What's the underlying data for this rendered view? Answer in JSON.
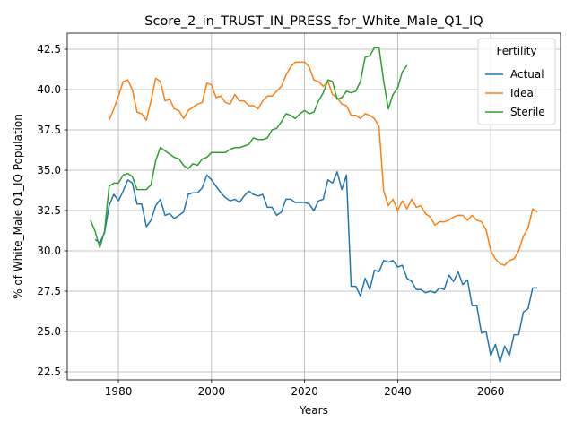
{
  "chart_data": {
    "type": "line",
    "title": "Score_2_in_TRUST_IN_PRESS_for_White_Male_Q1_IQ",
    "xlabel": "Years",
    "ylabel": "% of White_Male Q1_IQ Population",
    "xlim": [
      1969,
      2075
    ],
    "ylim": [
      22,
      43.5
    ],
    "xticks": [
      1980,
      2000,
      2020,
      2040,
      2060
    ],
    "yticks": [
      22.5,
      25.0,
      27.5,
      30.0,
      32.5,
      35.0,
      37.5,
      40.0,
      42.5
    ],
    "xtick_labels": [
      "1980",
      "2000",
      "2020",
      "2040",
      "2060"
    ],
    "ytick_labels": [
      "22.5",
      "25.0",
      "27.5",
      "30.0",
      "32.5",
      "35.0",
      "37.5",
      "40.0",
      "42.5"
    ],
    "grid": true,
    "legend": {
      "title": "Fertility",
      "position": "top-right"
    },
    "series": [
      {
        "name": "Actual",
        "color": "#1f77b4",
        "x": [
          1975,
          1976,
          1977,
          1978,
          1979,
          1980,
          1981,
          1982,
          1983,
          1984,
          1985,
          1986,
          1987,
          1988,
          1989,
          1990,
          1991,
          1992,
          1993,
          1994,
          1995,
          1996,
          1997,
          1998,
          1999,
          2000,
          2001,
          2002,
          2003,
          2004,
          2005,
          2006,
          2007,
          2008,
          2009,
          2010,
          2011,
          2012,
          2013,
          2014,
          2015,
          2016,
          2017,
          2018,
          2019,
          2020,
          2021,
          2022,
          2023,
          2024,
          2025,
          2026,
          2027,
          2028,
          2029,
          2030,
          2031,
          2032,
          2033,
          2034,
          2035,
          2036,
          2037,
          2038,
          2039,
          2040,
          2041,
          2042,
          2043,
          2044,
          2045,
          2046,
          2047,
          2048,
          2049,
          2050,
          2051,
          2052,
          2053,
          2054,
          2055,
          2056,
          2057,
          2058,
          2059,
          2060,
          2061,
          2062,
          2063,
          2064,
          2065,
          2066,
          2067,
          2068,
          2069,
          2070
        ],
        "y": [
          30.7,
          30.5,
          31.1,
          32.8,
          33.5,
          33.1,
          33.7,
          34.4,
          34.2,
          32.9,
          32.9,
          31.5,
          31.9,
          32.8,
          33.2,
          32.2,
          32.3,
          32.0,
          32.2,
          32.4,
          33.5,
          33.6,
          33.6,
          33.9,
          34.7,
          34.4,
          34.0,
          33.6,
          33.3,
          33.1,
          33.2,
          33.0,
          33.4,
          33.7,
          33.5,
          33.4,
          33.5,
          32.7,
          32.7,
          32.2,
          32.4,
          33.2,
          33.2,
          33.0,
          33.0,
          33.0,
          32.9,
          32.5,
          33.1,
          33.2,
          34.4,
          34.2,
          34.9,
          33.8,
          34.7,
          27.8,
          27.8,
          27.2,
          28.3,
          27.6,
          28.8,
          28.7,
          29.4,
          29.3,
          29.4,
          29.0,
          29.1,
          28.3,
          28.1,
          27.6,
          27.6,
          27.4,
          27.5,
          27.4,
          27.7,
          27.6,
          28.5,
          28.1,
          28.7,
          27.9,
          28.2,
          26.6,
          26.6,
          24.9,
          25.0,
          23.5,
          24.2,
          23.1,
          24.1,
          23.5,
          24.8,
          24.8,
          26.2,
          26.4,
          27.7,
          27.7
        ]
      },
      {
        "name": "Ideal",
        "color": "#ff7f0e",
        "x": [
          1978,
          1979,
          1980,
          1981,
          1982,
          1983,
          1984,
          1985,
          1986,
          1987,
          1988,
          1989,
          1990,
          1991,
          1992,
          1993,
          1994,
          1995,
          1996,
          1997,
          1998,
          1999,
          2000,
          2001,
          2002,
          2003,
          2004,
          2005,
          2006,
          2007,
          2008,
          2009,
          2010,
          2011,
          2012,
          2013,
          2014,
          2015,
          2016,
          2017,
          2018,
          2019,
          2020,
          2021,
          2022,
          2023,
          2024,
          2025,
          2026,
          2027,
          2028,
          2029,
          2030,
          2031,
          2032,
          2033,
          2034,
          2035,
          2036,
          2037,
          2038,
          2039,
          2040,
          2041,
          2042,
          2043,
          2044,
          2045,
          2046,
          2047,
          2048,
          2049,
          2050,
          2051,
          2052,
          2053,
          2054,
          2055,
          2056,
          2057,
          2058,
          2059,
          2060,
          2061,
          2062,
          2063,
          2064,
          2065,
          2066,
          2067,
          2068,
          2069,
          2070
        ],
        "y": [
          38.1,
          38.8,
          39.6,
          40.5,
          40.6,
          40.0,
          38.6,
          38.5,
          38.1,
          39.3,
          40.7,
          40.5,
          39.3,
          39.4,
          38.8,
          38.7,
          38.2,
          38.7,
          38.9,
          39.1,
          39.2,
          40.4,
          40.3,
          39.5,
          39.6,
          39.2,
          39.1,
          39.7,
          39.3,
          39.3,
          39.0,
          39.0,
          38.8,
          39.3,
          39.6,
          39.6,
          39.9,
          40.2,
          40.9,
          41.4,
          41.7,
          41.7,
          41.7,
          41.4,
          40.6,
          40.5,
          40.2,
          40.5,
          39.7,
          39.5,
          39.1,
          39.0,
          38.4,
          38.4,
          38.2,
          38.5,
          38.4,
          38.2,
          37.7,
          33.7,
          32.8,
          33.2,
          32.5,
          33.1,
          32.6,
          33.2,
          32.7,
          32.8,
          32.3,
          32.1,
          31.6,
          31.8,
          31.8,
          31.9,
          32.1,
          32.2,
          32.2,
          31.9,
          32.2,
          31.9,
          31.8,
          31.3,
          30.0,
          29.5,
          29.2,
          29.1,
          29.4,
          29.5,
          30.0,
          30.9,
          31.4,
          32.6,
          32.4
        ]
      },
      {
        "name": "Sterile",
        "color": "#2ca02c",
        "x": [
          1974,
          1975,
          1976,
          1977,
          1978,
          1979,
          1980,
          1981,
          1982,
          1983,
          1984,
          1985,
          1986,
          1987,
          1988,
          1989,
          1990,
          1991,
          1992,
          1993,
          1994,
          1995,
          1996,
          1997,
          1998,
          1999,
          2000,
          2001,
          2002,
          2003,
          2004,
          2005,
          2006,
          2007,
          2008,
          2009,
          2010,
          2011,
          2012,
          2013,
          2014,
          2015,
          2016,
          2017,
          2018,
          2019,
          2020,
          2021,
          2022,
          2023,
          2024,
          2025,
          2026,
          2027,
          2028,
          2029,
          2030,
          2031,
          2032,
          2033,
          2034,
          2035,
          2036,
          2037,
          2038,
          2039,
          2040,
          2041,
          2042
        ],
        "y": [
          31.9,
          31.2,
          30.2,
          31.2,
          34.0,
          34.2,
          34.2,
          34.7,
          34.8,
          34.6,
          33.8,
          33.8,
          33.8,
          34.1,
          35.6,
          36.4,
          36.2,
          36.0,
          35.8,
          35.7,
          35.3,
          35.1,
          35.4,
          35.3,
          35.7,
          35.8,
          36.1,
          36.1,
          36.1,
          36.1,
          36.3,
          36.4,
          36.4,
          36.5,
          36.6,
          37.0,
          36.9,
          36.9,
          37.0,
          37.5,
          37.6,
          38.0,
          38.5,
          38.4,
          38.2,
          38.5,
          38.7,
          38.5,
          38.6,
          39.3,
          39.8,
          40.6,
          40.5,
          39.4,
          39.5,
          39.9,
          39.8,
          39.9,
          40.5,
          42.0,
          42.1,
          42.6,
          42.6,
          40.5,
          38.8,
          39.7,
          40.1,
          41.1,
          41.5
        ]
      }
    ]
  }
}
